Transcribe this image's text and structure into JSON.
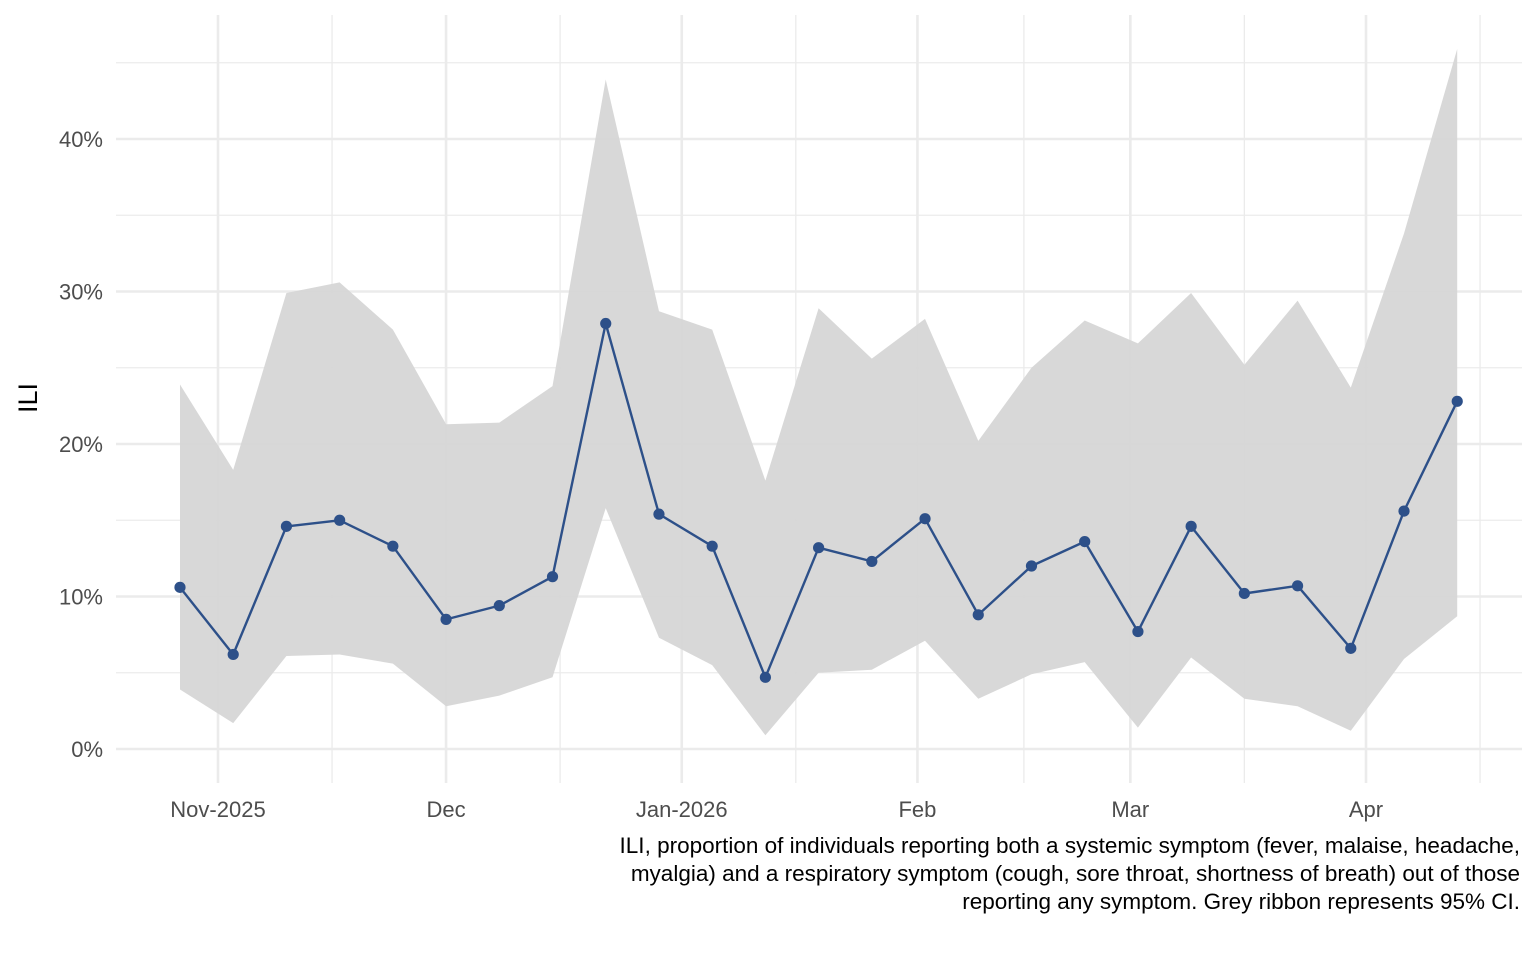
{
  "chart_data": {
    "type": "line",
    "title": "",
    "xlabel": "",
    "ylabel": "ILI",
    "caption": "ILI, proportion of individuals reporting both a systemic symptom (fever, malaise, headache, myalgia) and a respiratory symptom (cough, sore throat, shortness of breath) out of those reporting any symptom. Grey ribbon represents 95% CI.",
    "x": [
      "2025-10-27",
      "2025-11-03",
      "2025-11-10",
      "2025-11-17",
      "2025-11-24",
      "2025-12-01",
      "2025-12-08",
      "2025-12-15",
      "2025-12-22",
      "2025-12-29",
      "2026-01-05",
      "2026-01-12",
      "2026-01-19",
      "2026-01-26",
      "2026-02-02",
      "2026-02-09",
      "2026-02-16",
      "2026-02-23",
      "2026-03-02",
      "2026-03-09",
      "2026-03-16",
      "2026-03-23",
      "2026-03-30",
      "2026-04-06",
      "2026-04-13"
    ],
    "series": [
      {
        "name": "ILI",
        "color": "#2d5089",
        "values": [
          10.6,
          6.2,
          14.6,
          15.0,
          13.3,
          8.5,
          9.4,
          11.3,
          27.9,
          15.4,
          13.3,
          4.7,
          13.2,
          12.3,
          15.1,
          8.8,
          12.0,
          13.6,
          7.7,
          14.6,
          10.2,
          10.7,
          6.6,
          15.6,
          22.8
        ]
      }
    ],
    "ribbon": {
      "name": "95% CI",
      "color": "#d6d6d6",
      "lower": [
        3.9,
        1.7,
        6.1,
        6.2,
        5.6,
        2.8,
        3.5,
        4.7,
        15.8,
        7.3,
        5.5,
        0.9,
        5.0,
        5.2,
        7.1,
        3.3,
        4.9,
        5.7,
        1.4,
        6.0,
        3.3,
        2.8,
        1.2,
        5.9,
        8.7
      ],
      "upper": [
        23.9,
        18.3,
        29.9,
        30.6,
        27.5,
        21.3,
        21.4,
        23.8,
        43.9,
        28.7,
        27.5,
        17.6,
        28.9,
        25.6,
        28.2,
        20.2,
        25.0,
        28.1,
        26.6,
        29.9,
        25.2,
        29.4,
        23.7,
        33.8,
        45.9
      ]
    },
    "x_ticks": [
      {
        "date": "2025-11-01",
        "label": "Nov-2025"
      },
      {
        "date": "2025-12-01",
        "label": "Dec"
      },
      {
        "date": "2026-01-01",
        "label": "Jan-2026"
      },
      {
        "date": "2026-02-01",
        "label": "Feb"
      },
      {
        "date": "2026-03-01",
        "label": "Mar"
      },
      {
        "date": "2026-04-01",
        "label": "Apr"
      }
    ],
    "x_minor_ticks": [
      "2025-11-16",
      "2025-12-16",
      "2026-01-16",
      "2026-02-15",
      "2026-03-16",
      "2026-04-16"
    ],
    "xlim": [
      "2025-10-22",
      "2026-04-20"
    ],
    "y_ticks": [
      0,
      10,
      20,
      30,
      40
    ],
    "y_tick_labels": [
      "0%",
      "10%",
      "20%",
      "30%",
      "40%"
    ],
    "y_minor_ticks": [
      5,
      15,
      25,
      35,
      45
    ],
    "ylim": [
      -2.3,
      48.3
    ],
    "grid": true,
    "legend": "none"
  }
}
